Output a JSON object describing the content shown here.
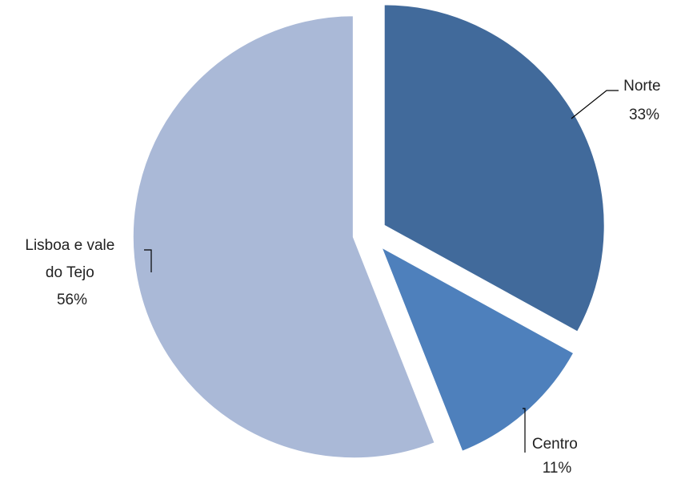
{
  "chart_data": {
    "type": "pie",
    "categories": [
      "Norte",
      "Centro",
      "Lisboa e vale do Tejo"
    ],
    "values": [
      33,
      11,
      56
    ],
    "unit": "%",
    "colors": [
      "#416A9B",
      "#4E80BC",
      "#AAB9D7"
    ],
    "exploded": true,
    "start_angle_deg": 0,
    "direction": "clockwise",
    "labels": [
      {
        "lines": [
          "Norte"
        ],
        "value_text": "33%"
      },
      {
        "lines": [
          "Centro"
        ],
        "value_text": "11%"
      },
      {
        "lines": [
          "Lisboa e vale",
          "do Tejo"
        ],
        "value_text": "56%"
      }
    ],
    "title": "",
    "legend": "none"
  }
}
